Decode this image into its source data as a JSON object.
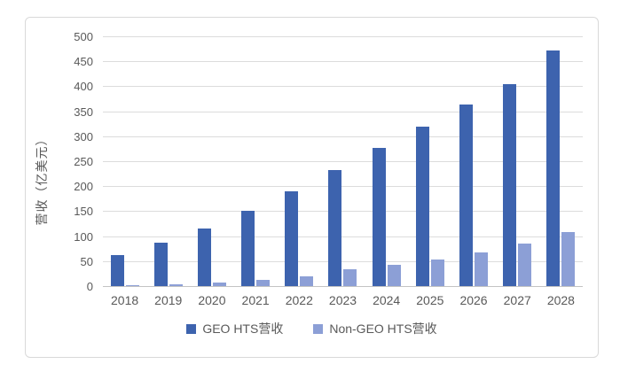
{
  "chart_data": {
    "type": "bar",
    "title": "",
    "ylabel": "营收（亿美元）",
    "xlabel": "",
    "ylim": [
      0,
      500
    ],
    "ytick_step": 50,
    "grid": true,
    "legend_position": "bottom",
    "categories": [
      "2018",
      "2019",
      "2020",
      "2021",
      "2022",
      "2023",
      "2024",
      "2025",
      "2026",
      "2027",
      "2028"
    ],
    "series": [
      {
        "name": "GEO HTS营收",
        "color": "#3d63ae",
        "values": [
          62,
          87,
          116,
          150,
          189,
          233,
          277,
          320,
          364,
          405,
          472
        ]
      },
      {
        "name": "Non-GEO HTS营收",
        "color": "#8c9fd6",
        "values": [
          2,
          4,
          7,
          13,
          20,
          33,
          43,
          54,
          68,
          85,
          108
        ]
      }
    ]
  },
  "colors": {
    "gridline": "#dcdcdc",
    "axis_line": "#c3c3c3",
    "text": "#595959",
    "frame_border": "#d9d9d9",
    "background": "#ffffff"
  }
}
